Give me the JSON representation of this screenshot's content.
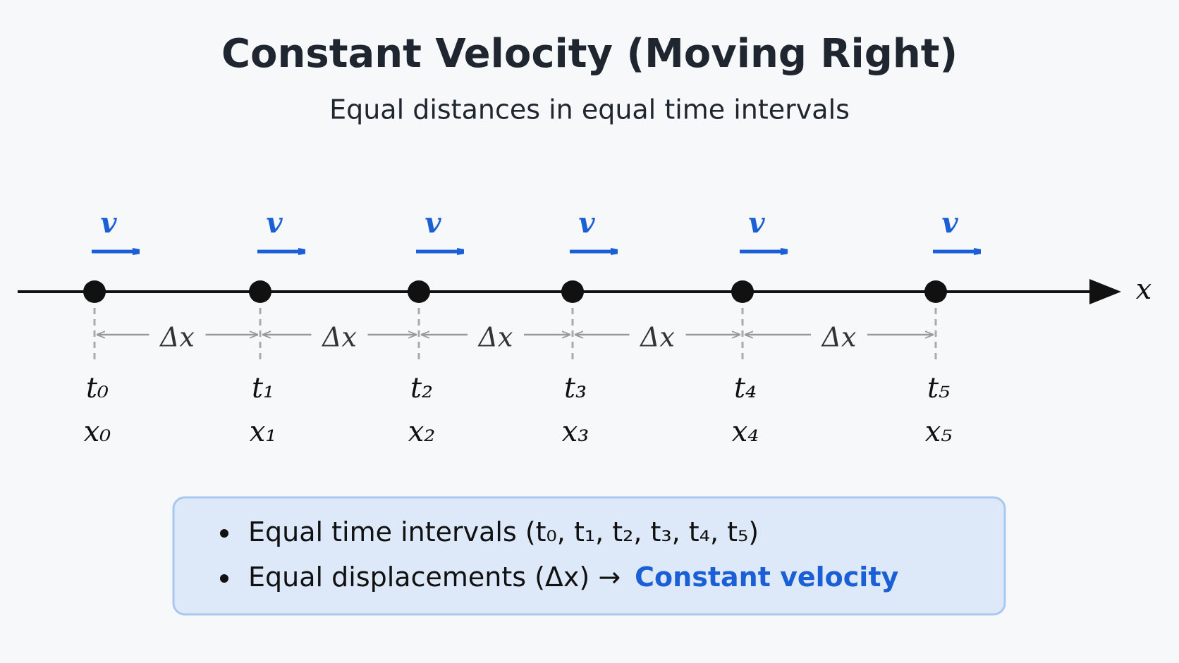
{
  "title": "Constant Velocity (Moving Right)",
  "subtitle": "Equal distances in equal time intervals",
  "axis_label": "x",
  "points": [
    {
      "velocity": "v",
      "time": "t₀",
      "position": "x₀"
    },
    {
      "velocity": "v",
      "time": "t₁",
      "position": "x₁"
    },
    {
      "velocity": "v",
      "time": "t₂",
      "position": "x₂"
    },
    {
      "velocity": "v",
      "time": "t₃",
      "position": "x₃"
    },
    {
      "velocity": "v",
      "time": "t₄",
      "position": "x₄"
    },
    {
      "velocity": "v",
      "time": "t₅",
      "position": "x₅"
    }
  ],
  "intervals": [
    "Δx",
    "Δx",
    "Δx",
    "Δx",
    "Δx"
  ],
  "info_box": {
    "bullets": [
      {
        "text": "Equal time intervals (t₀, t₁, t₂, t₃, t₄, t₅)"
      },
      {
        "text": "Equal displacements (Δx) →",
        "highlight": "Constant velocity"
      }
    ]
  }
}
